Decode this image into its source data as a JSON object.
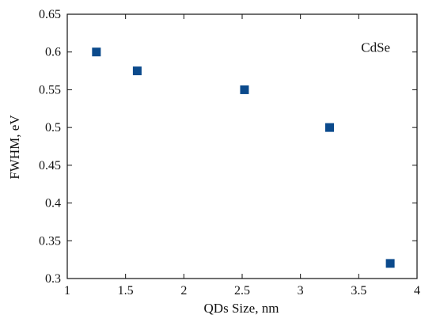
{
  "chart_data": {
    "type": "scatter",
    "title": "",
    "xlabel": "QDs Size, nm",
    "ylabel": "FWHM, eV",
    "xlim": [
      1,
      4
    ],
    "ylim": [
      0.3,
      0.65
    ],
    "x_ticks": [
      1,
      1.5,
      2,
      2.5,
      3,
      3.5,
      4
    ],
    "y_ticks": [
      0.3,
      0.35,
      0.4,
      0.45,
      0.5,
      0.55,
      0.6,
      0.65
    ],
    "x_tick_labels": [
      "1",
      "1.5",
      "2",
      "2.5",
      "3",
      "3.5",
      "4"
    ],
    "y_tick_labels": [
      "0.3",
      "0.35",
      "0.4",
      "0.45",
      "0.5",
      "0.55",
      "0.6",
      "0.65"
    ],
    "series": [
      {
        "marker": "square",
        "color": "#0b4a8c",
        "x": [
          1.25,
          1.6,
          2.52,
          3.25,
          3.77
        ],
        "y": [
          0.6,
          0.575,
          0.55,
          0.5,
          0.32
        ]
      }
    ],
    "annotations": [
      {
        "text": "CdSe",
        "x": 3.52,
        "y": 0.6
      }
    ],
    "grid": false,
    "frame": "box"
  }
}
